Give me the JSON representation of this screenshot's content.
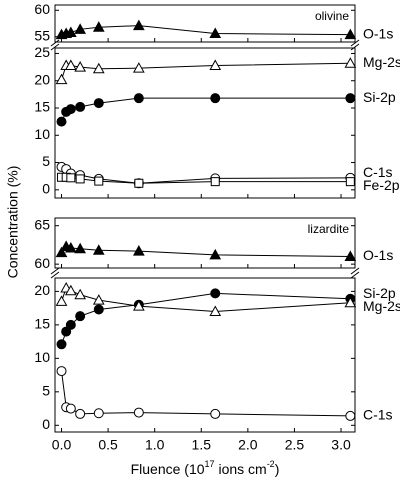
{
  "chart_data": [
    {
      "type": "line",
      "annotation": "olivine",
      "x": [
        0,
        0.05,
        0.1,
        0.2,
        0.4,
        0.83,
        1.65,
        3.1
      ],
      "ylim_upper": [
        54,
        61
      ],
      "yticks_upper": [
        55,
        60
      ],
      "ylim": [
        -1.5,
        26
      ],
      "yticks": [
        0,
        5,
        10,
        15,
        20,
        25
      ],
      "series": [
        {
          "name": "O-1s",
          "color": "#000000",
          "marker": "triangle",
          "filled": true,
          "axis": "upper",
          "values": [
            55.4,
            55.6,
            55.8,
            56.4,
            56.8,
            57.1,
            55.6,
            55.4
          ]
        },
        {
          "name": "Mg-2s",
          "color": "#000000",
          "marker": "triangle",
          "filled": false,
          "axis": "lower",
          "values": [
            20.2,
            22.8,
            22.8,
            22.5,
            22.2,
            22.3,
            22.8,
            23.2
          ]
        },
        {
          "name": "Si-2p",
          "color": "#000000",
          "marker": "circle",
          "filled": true,
          "axis": "lower",
          "values": [
            12.5,
            14.3,
            14.8,
            15.2,
            15.9,
            16.8,
            16.8,
            16.8
          ]
        },
        {
          "name": "C-1s",
          "color": "#000000",
          "marker": "circle",
          "filled": false,
          "axis": "lower",
          "values": [
            4.2,
            3.8,
            3.0,
            2.7,
            2.0,
            1.2,
            2.1,
            2.2
          ]
        },
        {
          "name": "Fe-2p",
          "color": "#000000",
          "marker": "square",
          "filled": false,
          "axis": "lower",
          "values": [
            2.3,
            2.3,
            2.2,
            2.0,
            1.6,
            1.2,
            1.5,
            1.5
          ]
        }
      ]
    },
    {
      "type": "line",
      "annotation": "lizardite",
      "x": [
        0,
        0.05,
        0.1,
        0.2,
        0.4,
        0.83,
        1.65,
        3.1
      ],
      "ylim_upper": [
        59.5,
        66
      ],
      "yticks_upper": [
        60,
        65
      ],
      "ylim": [
        -1,
        22
      ],
      "yticks": [
        0,
        5,
        10,
        15,
        20
      ],
      "series": [
        {
          "name": "O-1s",
          "color": "#000000",
          "marker": "triangle",
          "filled": true,
          "axis": "upper",
          "values": [
            61.5,
            62.3,
            62.1,
            62.0,
            61.8,
            61.7,
            61.2,
            61.0
          ]
        },
        {
          "name": "Si-2p",
          "color": "#000000",
          "marker": "circle",
          "filled": true,
          "axis": "lower",
          "values": [
            12.1,
            14.0,
            15.0,
            16.3,
            17.3,
            18.0,
            19.7,
            18.9
          ]
        },
        {
          "name": "Mg-2s",
          "color": "#000000",
          "marker": "triangle",
          "filled": false,
          "axis": "lower",
          "values": [
            18.5,
            20.5,
            20.1,
            19.5,
            18.7,
            17.8,
            17.0,
            18.3
          ]
        },
        {
          "name": "C-1s",
          "color": "#000000",
          "marker": "circle",
          "filled": false,
          "axis": "lower",
          "values": [
            8.1,
            2.7,
            2.5,
            1.7,
            1.8,
            1.9,
            1.7,
            1.4
          ]
        }
      ]
    }
  ],
  "xlim": [
    -0.07,
    3.15
  ],
  "xticks": [
    {
      "value": 0,
      "label": "0.0"
    },
    0.5,
    {
      "value": 1,
      "label": "1.0"
    },
    1.5,
    {
      "value": 2,
      "label": "2.0"
    },
    2.5,
    {
      "value": 3,
      "label": "3.0"
    }
  ],
  "y_label": "Concentration (%)",
  "x_label": [
    "Fluence (10",
    "17",
    " ions cm",
    "-2",
    ")"
  ]
}
